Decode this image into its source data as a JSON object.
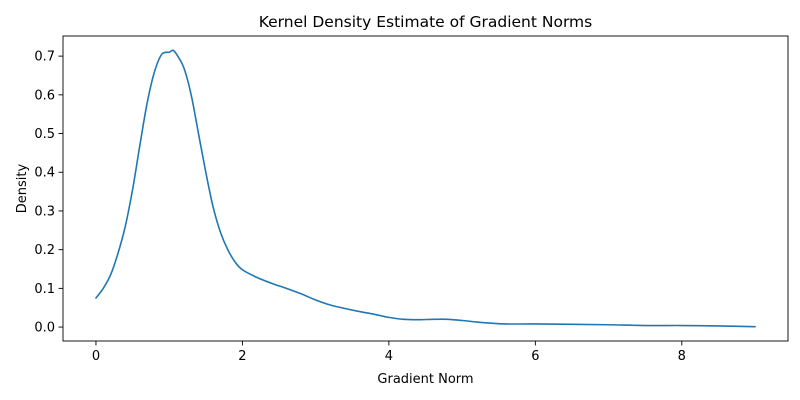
{
  "chart_data": {
    "type": "line",
    "title": "Kernel Density Estimate of Gradient Norms",
    "xlabel": "Gradient Norm",
    "ylabel": "Density",
    "xlim": [
      -0.45,
      9.45
    ],
    "ylim": [
      -0.036,
      0.752
    ],
    "xticks": [
      0,
      2,
      4,
      6,
      8
    ],
    "yticks": [
      0.0,
      0.1,
      0.2,
      0.3,
      0.4,
      0.5,
      0.6,
      0.7
    ],
    "grid": false,
    "line_color": "#1f77b4",
    "series": [
      {
        "x": [
          0,
          0.1,
          0.2,
          0.3,
          0.4,
          0.5,
          0.6,
          0.7,
          0.8,
          0.9,
          1.0,
          1.05,
          1.1,
          1.2,
          1.3,
          1.4,
          1.5,
          1.6,
          1.7,
          1.8,
          1.9,
          2.0,
          2.2,
          2.4,
          2.6,
          2.8,
          3.0,
          3.2,
          3.4,
          3.6,
          3.8,
          4.0,
          4.2,
          4.4,
          4.6,
          4.8,
          5.0,
          5.2,
          5.4,
          5.6,
          6.0,
          6.5,
          7.0,
          7.5,
          8.0,
          8.5,
          9.0
        ],
        "y": [
          0.075,
          0.1,
          0.135,
          0.19,
          0.26,
          0.355,
          0.47,
          0.58,
          0.66,
          0.705,
          0.71,
          0.715,
          0.705,
          0.67,
          0.6,
          0.5,
          0.4,
          0.31,
          0.245,
          0.2,
          0.168,
          0.148,
          0.128,
          0.113,
          0.1,
          0.086,
          0.07,
          0.057,
          0.048,
          0.04,
          0.033,
          0.025,
          0.02,
          0.019,
          0.02,
          0.02,
          0.017,
          0.013,
          0.01,
          0.008,
          0.008,
          0.007,
          0.006,
          0.004,
          0.004,
          0.003,
          0.001
        ]
      }
    ]
  }
}
